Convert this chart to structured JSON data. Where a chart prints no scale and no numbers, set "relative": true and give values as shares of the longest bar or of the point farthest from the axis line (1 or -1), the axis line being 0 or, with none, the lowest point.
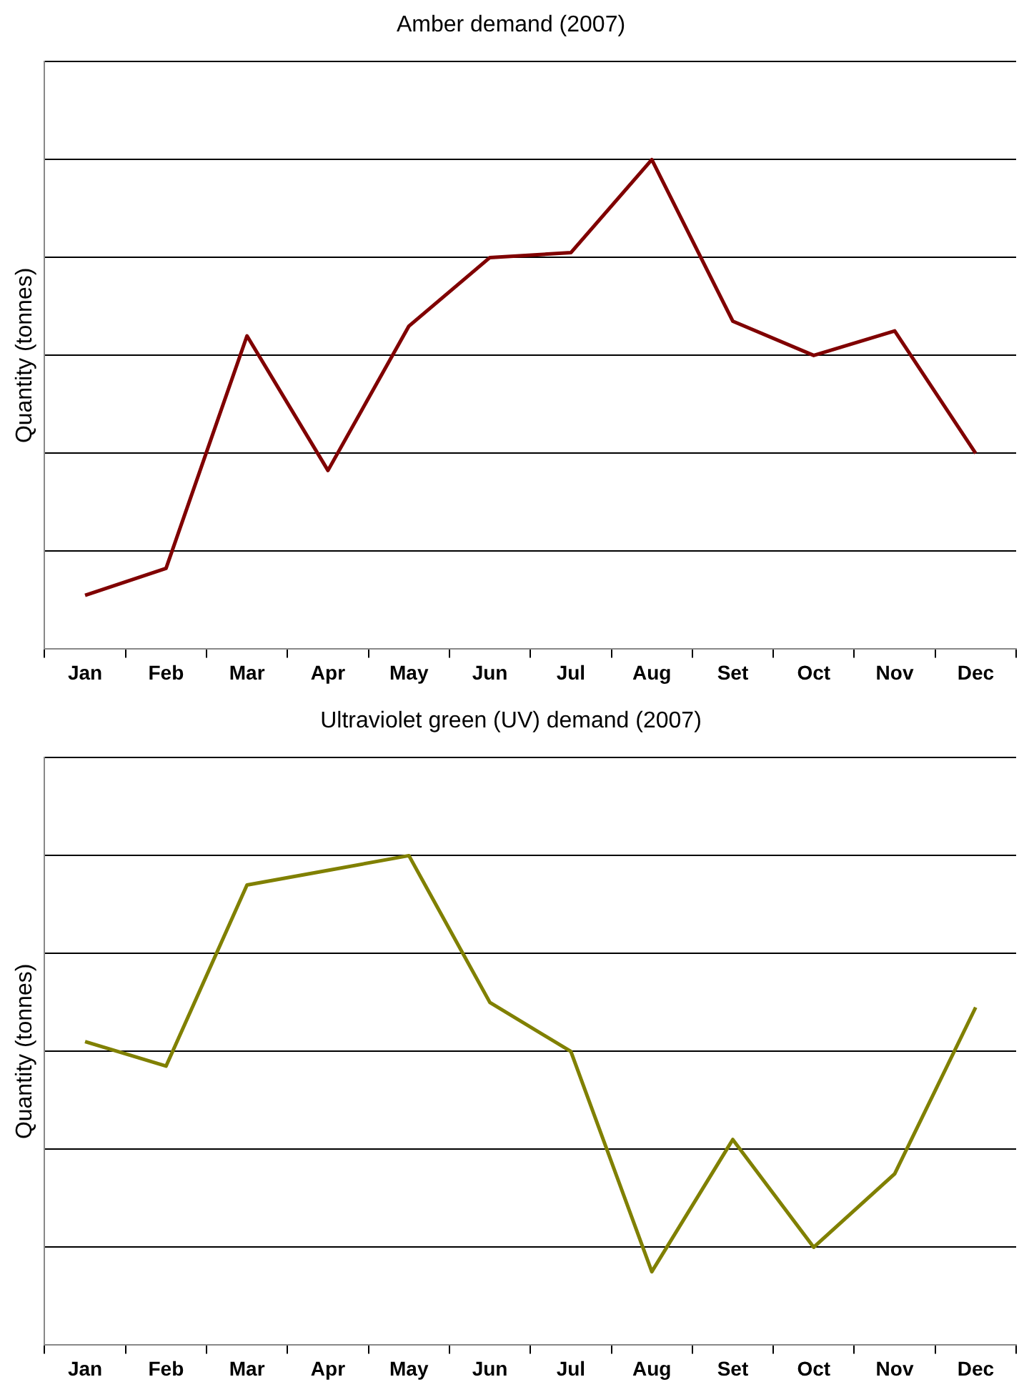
{
  "chart_data": [
    {
      "type": "line",
      "title": "Amber demand (2007)",
      "ylabel": "Quantity (tonnes)",
      "relative": true,
      "grid": "y",
      "legend": false,
      "marker": "none",
      "categories": [
        "Jan",
        "Feb",
        "Mar",
        "Apr",
        "May",
        "Jun",
        "Jul",
        "Aug",
        "Set",
        "Oct",
        "Nov",
        "Dec"
      ],
      "series": [
        {
          "color": "#800000",
          "values": [
            0.11,
            0.165,
            0.64,
            0.365,
            0.66,
            0.8,
            0.81,
            1,
            0.67,
            0.6,
            0.65,
            0.4
          ]
        }
      ]
    },
    {
      "type": "line",
      "title": "Ultraviolet green (UV) demand (2007)",
      "ylabel": "Quantity (tonnes)",
      "relative": true,
      "grid": "y",
      "legend": false,
      "marker": "none",
      "categories": [
        "Jan",
        "Feb",
        "Mar",
        "Apr",
        "May",
        "Jun",
        "Jul",
        "Aug",
        "Set",
        "Oct",
        "Nov",
        "Dec"
      ],
      "series": [
        {
          "color": "#808000",
          "values": [
            0.62,
            0.57,
            0.94,
            0.97,
            1,
            0.7,
            0.6,
            0.15,
            0.42,
            0.2,
            0.35,
            0.69
          ]
        }
      ]
    }
  ]
}
